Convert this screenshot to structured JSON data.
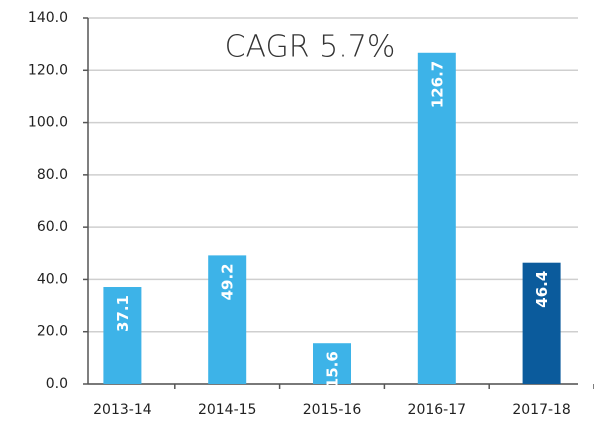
{
  "chart_data": {
    "type": "bar",
    "annotation": "CAGR 5.7%",
    "categories": [
      "2013-14",
      "2014-15",
      "2015-16",
      "2016-17",
      "2017-18"
    ],
    "values": [
      37.1,
      49.2,
      15.6,
      126.7,
      46.4
    ],
    "colors": [
      "#3db3e8",
      "#3db3e8",
      "#3db3e8",
      "#3db3e8",
      "#0b5b9c"
    ],
    "ylim": [
      0,
      140
    ],
    "yticks": [
      {
        "value": 0,
        "label": "0.0"
      },
      {
        "value": 20,
        "label": "20.0"
      },
      {
        "value": 40,
        "label": "40.0"
      },
      {
        "value": 60,
        "label": "60.0"
      },
      {
        "value": 80,
        "label": "80.0"
      },
      {
        "value": 100,
        "label": "100.0"
      },
      {
        "value": 120,
        "label": "120.0"
      },
      {
        "value": 140,
        "label": "140.0"
      }
    ],
    "grid": true
  }
}
